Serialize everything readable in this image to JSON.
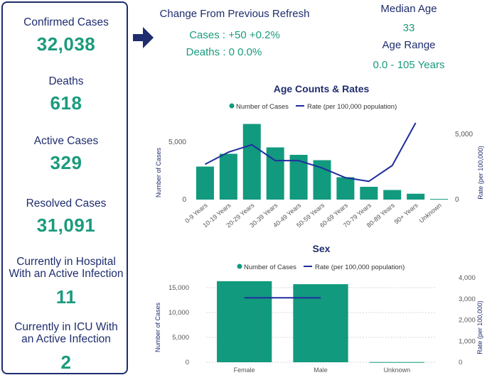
{
  "stats": [
    {
      "label": "Confirmed Cases",
      "value": "32,038"
    },
    {
      "label": "Deaths",
      "value": "618"
    },
    {
      "label": "Active Cases",
      "value": "329"
    },
    {
      "label": "Resolved Cases",
      "value": "31,091"
    },
    {
      "label": "Currently in Hospital With an Active Infection",
      "value": "11"
    },
    {
      "label": "Currently in ICU With an Active Infection",
      "value": "2"
    }
  ],
  "change": {
    "title": "Change From Previous Refresh",
    "cases": "Cases : +50 +0.2%",
    "deaths": "Deaths : 0 0.0%"
  },
  "median_age": {
    "label": "Median Age",
    "value": "33"
  },
  "age_range": {
    "label": "Age Range",
    "value": "0.0 - 105 Years"
  },
  "colors": {
    "navy": "#1f2d6e",
    "teal": "#1a9b7d",
    "bar": "#119a7e",
    "line": "#1f2d9e"
  },
  "chart_data": [
    {
      "type": "bar",
      "title": "Age Counts & Rates",
      "legend": [
        "Number of Cases",
        "Rate (per 100,000 population)"
      ],
      "legend_position": "top",
      "categories": [
        "0-9 Years",
        "10-19 Years",
        "20-29 Years",
        "30-39 Years",
        "40-49 Years",
        "50-59 Years",
        "60-69 Years",
        "70-79 Years",
        "80-89 Years",
        "90+ Years",
        "Unknown"
      ],
      "series": [
        {
          "name": "Number of Cases",
          "axis": "left",
          "values": [
            3100,
            4300,
            7100,
            4900,
            4200,
            3700,
            2100,
            1200,
            900,
            550,
            60
          ]
        },
        {
          "name": "Rate (per 100,000 population)",
          "axis": "right",
          "values": [
            2900,
            3900,
            4500,
            3200,
            3200,
            2600,
            1800,
            1500,
            2800,
            6300,
            null
          ]
        }
      ],
      "ylabel": "Number of Cases",
      "y2label": "Rate (per 100,000)",
      "yticks": [
        "0",
        "5,000"
      ],
      "ylim": [
        0,
        8000
      ],
      "y2ticks": [
        "0",
        "5,000"
      ],
      "y2lim": [
        0,
        7000
      ]
    },
    {
      "type": "bar",
      "title": "Sex",
      "legend": [
        "Number of Cases",
        "Rate (per 100,000 population)"
      ],
      "legend_position": "top",
      "categories": [
        "Female",
        "Male",
        "Unknown"
      ],
      "series": [
        {
          "name": "Number of Cases",
          "axis": "left",
          "values": [
            16300,
            15700,
            40
          ]
        },
        {
          "name": "Rate (per 100,000 population)",
          "axis": "right",
          "values": [
            3050,
            3050,
            null
          ]
        }
      ],
      "ylabel": "Number of Cases",
      "y2label": "Rate (per 100,000)",
      "yticks": [
        "0",
        "5,000",
        "10,000",
        "15,000"
      ],
      "ylim": [
        0,
        17000
      ],
      "y2ticks": [
        "0",
        "1,000",
        "2,000",
        "3,000",
        "4,000"
      ],
      "y2lim": [
        0,
        4000
      ]
    }
  ]
}
